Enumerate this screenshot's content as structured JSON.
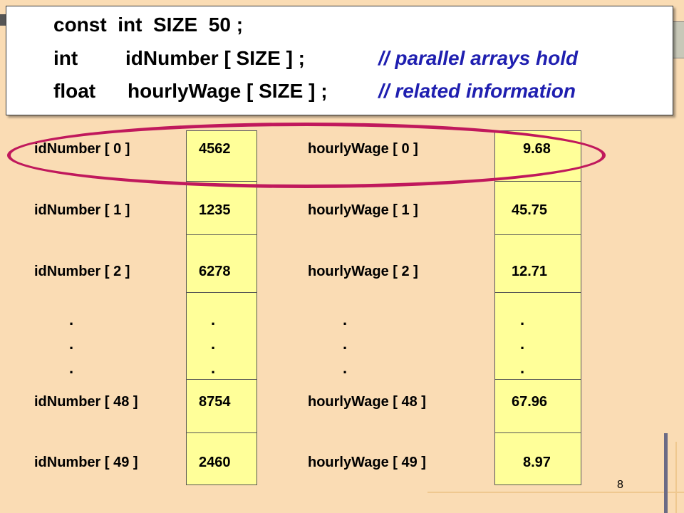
{
  "code": {
    "line1": "const  int  SIZE  50 ;",
    "line2": "int",
    "line2_decl": "idNumber [ SIZE ] ;",
    "line2_comment": "// parallel arrays hold",
    "line3": "float",
    "line3_decl": "hourlyWage [ SIZE ] ;",
    "line3_comment": "// related information"
  },
  "rows": [
    {
      "id_label": "idNumber [ 0 ]",
      "id_value": "4562",
      "wage_label": "hourlyWage [ 0 ]",
      "wage_value": "9.68"
    },
    {
      "id_label": "idNumber [ 1 ]",
      "id_value": "1235",
      "wage_label": "hourlyWage [ 1 ]",
      "wage_value": "45.75"
    },
    {
      "id_label": "idNumber [ 2 ]",
      "id_value": "6278",
      "wage_label": "hourlyWage [ 2 ]",
      "wage_value": "12.71"
    },
    {
      "id_label": "idNumber [ 48 ]",
      "id_value": "8754",
      "wage_label": "hourlyWage [ 48 ]",
      "wage_value": "67.96"
    },
    {
      "id_label": "idNumber [ 49 ]",
      "id_value": "2460",
      "wage_label": "hourlyWage [ 49 ]",
      "wage_value": "8.97"
    }
  ],
  "ellipsis_dot": ".",
  "page_number": "8"
}
